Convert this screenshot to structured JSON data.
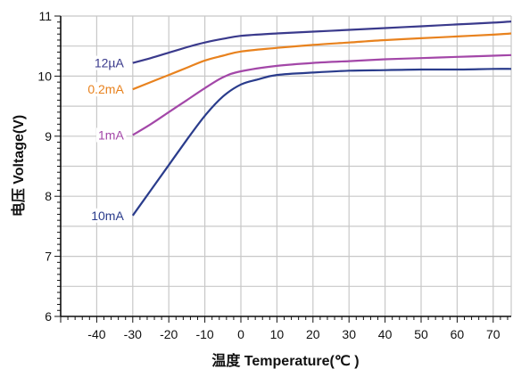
{
  "chart_data": {
    "type": "line",
    "title": "",
    "xlabel": "温度 Temperature(℃ )",
    "ylabel": "电压 Voltage(V)",
    "xlim": [
      -50,
      75
    ],
    "ylim": [
      6,
      11
    ],
    "x_ticks": [
      -40,
      -30,
      -20,
      -10,
      0,
      10,
      20,
      30,
      40,
      50,
      60,
      70
    ],
    "y_ticks": [
      6,
      7,
      8,
      9,
      10,
      11
    ],
    "grid": true,
    "series": [
      {
        "name": "12µA",
        "color": "#3a3a8c",
        "x": [
          -30,
          -25,
          -20,
          -15,
          -10,
          -5,
          0,
          10,
          20,
          30,
          40,
          50,
          60,
          70,
          75
        ],
        "y": [
          10.22,
          10.3,
          10.39,
          10.48,
          10.56,
          10.62,
          10.67,
          10.71,
          10.74,
          10.77,
          10.8,
          10.83,
          10.86,
          10.89,
          10.91
        ]
      },
      {
        "name": "0.2mA",
        "color": "#e8821e",
        "x": [
          -30,
          -25,
          -20,
          -15,
          -10,
          -5,
          0,
          10,
          20,
          30,
          40,
          50,
          60,
          70,
          75
        ],
        "y": [
          9.78,
          9.9,
          10.02,
          10.14,
          10.26,
          10.34,
          10.41,
          10.47,
          10.52,
          10.56,
          10.6,
          10.63,
          10.66,
          10.69,
          10.71
        ]
      },
      {
        "name": "1mA",
        "color": "#a347a8",
        "x": [
          -30,
          -25,
          -20,
          -15,
          -10,
          -5,
          0,
          10,
          20,
          30,
          40,
          50,
          60,
          70,
          75
        ],
        "y": [
          9.02,
          9.2,
          9.4,
          9.6,
          9.8,
          9.98,
          10.08,
          10.17,
          10.22,
          10.25,
          10.28,
          10.3,
          10.32,
          10.34,
          10.35
        ]
      },
      {
        "name": "10mA",
        "color": "#2a3c8c",
        "x": [
          -30,
          -25,
          -20,
          -15,
          -10,
          -5,
          0,
          5,
          10,
          20,
          30,
          40,
          50,
          60,
          70,
          75
        ],
        "y": [
          7.68,
          8.1,
          8.52,
          8.94,
          9.34,
          9.66,
          9.86,
          9.95,
          10.02,
          10.06,
          10.09,
          10.1,
          10.11,
          10.11,
          10.12,
          10.12
        ]
      }
    ]
  }
}
